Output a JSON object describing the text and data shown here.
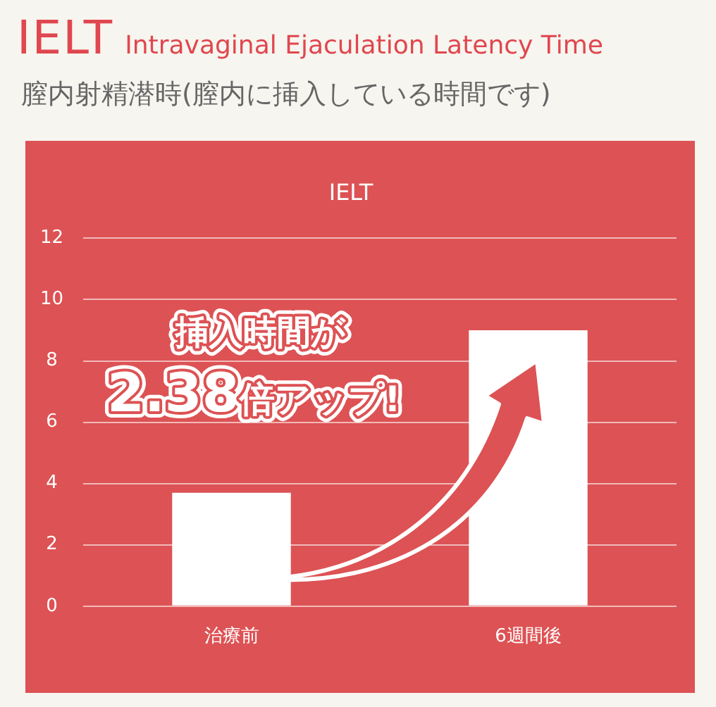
{
  "chart_data": {
    "type": "bar",
    "title": "IELT Intravaginal Ejaculation Latency Time",
    "subtitle": "膣内射精潜時(膣内に挿入している時間です)",
    "categories": [
      "治療前",
      "6週間後"
    ],
    "values": [
      3.7,
      9
    ],
    "color": "#ffffff",
    "ylim": [
      0,
      12
    ],
    "yticks": [
      0,
      2,
      4,
      6,
      8,
      10,
      12
    ],
    "grid": "y",
    "annotations": [
      "IELT",
      "挿入時間が",
      "2.38倍アップ!"
    ]
  }
}
